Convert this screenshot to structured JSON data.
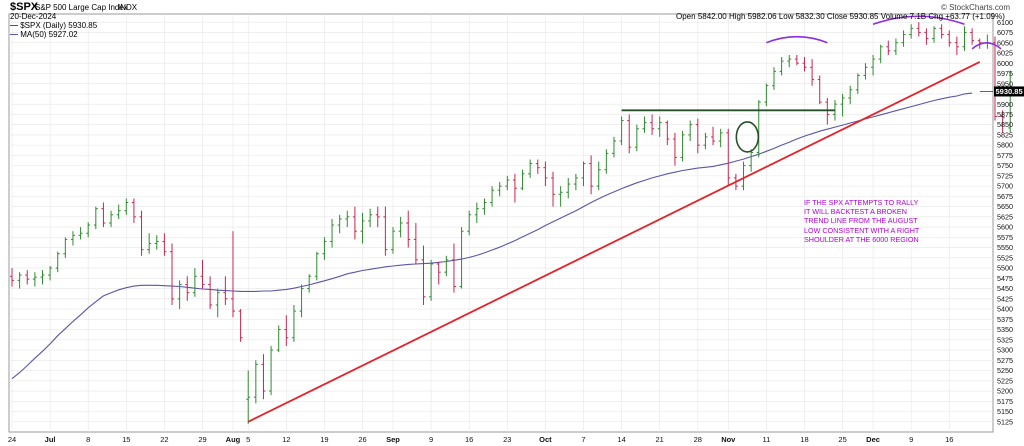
{
  "header": {
    "ticker": "$SPX",
    "name": "S&P 500 Large Cap Index",
    "exchange": "INDX",
    "date": "20-Dec-2024",
    "copyright": "© StockCharts.com",
    "legend_price": "$SPX (Daily) 5930.85",
    "legend_ma": "MA(50) 5927.02",
    "ohlc": {
      "open_label": "Open",
      "open": "5842.00",
      "high_label": "High",
      "high": "5982.06",
      "low_label": "Low",
      "low": "5832.30",
      "close_label": "Close",
      "close": "5930.85",
      "volume_label": "Volume",
      "volume": "7.1B",
      "chg_label": "Chg",
      "chg": "+63.77 (+1.09%)"
    }
  },
  "annotation_text": "IF THE SPX ATTEMPTS TO RALLY IT WILL BACKTEST A BROKEN TREND LINE FROM THE AUGUST LOW CONSISTENT WITH A RIGHT SHOULDER AT THE 6000 REGION",
  "last_price_label": "5930.85",
  "colors": {
    "up": "#2e8b2e",
    "down": "#c8264f",
    "ma": "#5a56a8",
    "trend": "#e3222a",
    "neckline": "#28502a",
    "arc": "#8a2be2",
    "note": "#b000d6",
    "grid": "#e6e6e6"
  },
  "chart_data": {
    "type": "ohlc",
    "ylim": [
      5100,
      6120
    ],
    "y_ticks": [
      5125,
      5150,
      5175,
      5200,
      5225,
      5250,
      5275,
      5300,
      5325,
      5350,
      5375,
      5400,
      5425,
      5450,
      5475,
      5500,
      5525,
      5550,
      5575,
      5600,
      5625,
      5650,
      5675,
      5700,
      5725,
      5750,
      5775,
      5800,
      5825,
      5850,
      5875,
      5900,
      5925,
      5950,
      5975,
      6000,
      6025,
      6050,
      6075,
      6100
    ],
    "x_labels": [
      {
        "label": "24",
        "i": 0,
        "bold": false
      },
      {
        "label": "Jul",
        "i": 5,
        "bold": true
      },
      {
        "label": "8",
        "i": 10,
        "bold": false
      },
      {
        "label": "15",
        "i": 15,
        "bold": false
      },
      {
        "label": "22",
        "i": 20,
        "bold": false
      },
      {
        "label": "29",
        "i": 25,
        "bold": false
      },
      {
        "label": "Aug",
        "i": 29,
        "bold": true
      },
      {
        "label": "5",
        "i": 31,
        "bold": false
      },
      {
        "label": "12",
        "i": 36,
        "bold": false
      },
      {
        "label": "19",
        "i": 41,
        "bold": false
      },
      {
        "label": "26",
        "i": 46,
        "bold": false
      },
      {
        "label": "Sep",
        "i": 50,
        "bold": true
      },
      {
        "label": "9",
        "i": 55,
        "bold": false
      },
      {
        "label": "16",
        "i": 60,
        "bold": false
      },
      {
        "label": "23",
        "i": 65,
        "bold": false
      },
      {
        "label": "Oct",
        "i": 70,
        "bold": true
      },
      {
        "label": "7",
        "i": 75,
        "bold": false
      },
      {
        "label": "14",
        "i": 80,
        "bold": false
      },
      {
        "label": "21",
        "i": 85,
        "bold": false
      },
      {
        "label": "28",
        "i": 90,
        "bold": false
      },
      {
        "label": "Nov",
        "i": 94,
        "bold": true
      },
      {
        "label": "11",
        "i": 99,
        "bold": false
      },
      {
        "label": "18",
        "i": 104,
        "bold": false
      },
      {
        "label": "25",
        "i": 109,
        "bold": false
      },
      {
        "label": "Dec",
        "i": 113,
        "bold": true
      },
      {
        "label": "9",
        "i": 118,
        "bold": false
      },
      {
        "label": "16",
        "i": 123,
        "bold": false
      }
    ],
    "bars": [
      [
        5480,
        5500,
        5455,
        5470
      ],
      [
        5470,
        5490,
        5450,
        5483
      ],
      [
        5483,
        5495,
        5460,
        5473
      ],
      [
        5473,
        5490,
        5455,
        5478
      ],
      [
        5478,
        5495,
        5460,
        5483
      ],
      [
        5483,
        5505,
        5470,
        5500
      ],
      [
        5500,
        5540,
        5490,
        5535
      ],
      [
        5535,
        5575,
        5525,
        5570
      ],
      [
        5570,
        5590,
        5555,
        5580
      ],
      [
        5580,
        5600,
        5570,
        5585
      ],
      [
        5585,
        5612,
        5575,
        5605
      ],
      [
        5605,
        5650,
        5595,
        5645
      ],
      [
        5645,
        5660,
        5600,
        5610
      ],
      [
        5610,
        5640,
        5600,
        5630
      ],
      [
        5630,
        5655,
        5620,
        5640
      ],
      [
        5640,
        5670,
        5630,
        5660
      ],
      [
        5660,
        5670,
        5610,
        5625
      ],
      [
        5625,
        5640,
        5530,
        5545
      ],
      [
        5545,
        5585,
        5535,
        5560
      ],
      [
        5560,
        5580,
        5545,
        5565
      ],
      [
        5565,
        5585,
        5530,
        5540
      ],
      [
        5540,
        5560,
        5410,
        5425
      ],
      [
        5425,
        5470,
        5400,
        5460
      ],
      [
        5460,
        5480,
        5420,
        5440
      ],
      [
        5440,
        5500,
        5430,
        5480
      ],
      [
        5480,
        5520,
        5450,
        5460
      ],
      [
        5460,
        5480,
        5400,
        5410
      ],
      [
        5410,
        5450,
        5380,
        5440
      ],
      [
        5440,
        5480,
        5410,
        5425
      ],
      [
        5425,
        5590,
        5380,
        5395
      ],
      [
        5395,
        5400,
        5320,
        5330
      ],
      [
        5180,
        5250,
        5120,
        5185
      ],
      [
        5185,
        5275,
        5170,
        5265
      ],
      [
        5265,
        5290,
        5180,
        5200
      ],
      [
        5200,
        5310,
        5190,
        5300
      ],
      [
        5300,
        5360,
        5295,
        5350
      ],
      [
        5350,
        5385,
        5310,
        5330
      ],
      [
        5330,
        5410,
        5320,
        5395
      ],
      [
        5395,
        5460,
        5380,
        5450
      ],
      [
        5450,
        5485,
        5440,
        5480
      ],
      [
        5480,
        5540,
        5470,
        5535
      ],
      [
        5535,
        5575,
        5520,
        5565
      ],
      [
        5565,
        5620,
        5550,
        5605
      ],
      [
        5605,
        5630,
        5585,
        5620
      ],
      [
        5620,
        5640,
        5600,
        5625
      ],
      [
        5625,
        5650,
        5570,
        5590
      ],
      [
        5590,
        5635,
        5560,
        5615
      ],
      [
        5615,
        5645,
        5600,
        5630
      ],
      [
        5630,
        5650,
        5600,
        5625
      ],
      [
        5625,
        5650,
        5530,
        5545
      ],
      [
        5545,
        5600,
        5535,
        5590
      ],
      [
        5590,
        5625,
        5575,
        5610
      ],
      [
        5610,
        5640,
        5550,
        5570
      ],
      [
        5570,
        5610,
        5510,
        5520
      ],
      [
        5520,
        5555,
        5410,
        5430
      ],
      [
        5430,
        5520,
        5420,
        5510
      ],
      [
        5510,
        5515,
        5460,
        5490
      ],
      [
        5490,
        5530,
        5480,
        5520
      ],
      [
        5520,
        5560,
        5440,
        5455
      ],
      [
        5455,
        5600,
        5450,
        5590
      ],
      [
        5590,
        5640,
        5580,
        5630
      ],
      [
        5630,
        5660,
        5610,
        5645
      ],
      [
        5645,
        5670,
        5630,
        5660
      ],
      [
        5660,
        5700,
        5650,
        5690
      ],
      [
        5690,
        5710,
        5675,
        5700
      ],
      [
        5700,
        5725,
        5690,
        5715
      ],
      [
        5715,
        5730,
        5660,
        5695
      ],
      [
        5695,
        5740,
        5690,
        5730
      ],
      [
        5730,
        5765,
        5720,
        5755
      ],
      [
        5755,
        5765,
        5730,
        5745
      ],
      [
        5745,
        5760,
        5700,
        5720
      ],
      [
        5720,
        5735,
        5650,
        5680
      ],
      [
        5680,
        5700,
        5650,
        5685
      ],
      [
        5685,
        5720,
        5670,
        5705
      ],
      [
        5705,
        5730,
        5690,
        5720
      ],
      [
        5720,
        5760,
        5700,
        5755
      ],
      [
        5755,
        5775,
        5680,
        5700
      ],
      [
        5700,
        5760,
        5690,
        5740
      ],
      [
        5740,
        5790,
        5730,
        5780
      ],
      [
        5780,
        5820,
        5770,
        5810
      ],
      [
        5810,
        5870,
        5800,
        5860
      ],
      [
        5860,
        5875,
        5780,
        5795
      ],
      [
        5795,
        5850,
        5785,
        5840
      ],
      [
        5840,
        5870,
        5830,
        5855
      ],
      [
        5855,
        5875,
        5825,
        5840
      ],
      [
        5840,
        5870,
        5820,
        5855
      ],
      [
        5855,
        5860,
        5800,
        5815
      ],
      [
        5815,
        5830,
        5750,
        5770
      ],
      [
        5770,
        5835,
        5760,
        5825
      ],
      [
        5825,
        5860,
        5810,
        5850
      ],
      [
        5850,
        5865,
        5780,
        5800
      ],
      [
        5800,
        5830,
        5790,
        5820
      ],
      [
        5820,
        5845,
        5800,
        5810
      ],
      [
        5810,
        5840,
        5795,
        5830
      ],
      [
        5830,
        5840,
        5700,
        5720
      ],
      [
        5720,
        5730,
        5690,
        5700
      ],
      [
        5700,
        5760,
        5690,
        5750
      ],
      [
        5750,
        5790,
        5735,
        5782
      ],
      [
        5782,
        5910,
        5770,
        5905
      ],
      [
        5905,
        5950,
        5895,
        5945
      ],
      [
        5945,
        5990,
        5935,
        5980
      ],
      [
        5980,
        6015,
        5970,
        6005
      ],
      [
        6005,
        6020,
        5990,
        6010
      ],
      [
        6010,
        6020,
        5995,
        6000
      ],
      [
        6000,
        6015,
        5980,
        5990
      ],
      [
        5990,
        6010,
        5945,
        5960
      ],
      [
        5960,
        5970,
        5900,
        5905
      ],
      [
        5905,
        5915,
        5850,
        5875
      ],
      [
        5875,
        5910,
        5860,
        5900
      ],
      [
        5900,
        5925,
        5870,
        5915
      ],
      [
        5915,
        5945,
        5900,
        5935
      ],
      [
        5935,
        5975,
        5925,
        5970
      ],
      [
        5970,
        6000,
        5960,
        5990
      ],
      [
        5990,
        6020,
        5970,
        6010
      ],
      [
        6010,
        6045,
        6000,
        6040
      ],
      [
        6040,
        6055,
        6020,
        6030
      ],
      [
        6030,
        6060,
        6020,
        6050
      ],
      [
        6050,
        6080,
        6040,
        6070
      ],
      [
        6070,
        6095,
        6060,
        6085
      ],
      [
        6085,
        6100,
        6065,
        6075
      ],
      [
        6075,
        6085,
        6045,
        6060
      ],
      [
        6060,
        6090,
        6050,
        6085
      ],
      [
        6085,
        6095,
        6060,
        6070
      ],
      [
        6070,
        6080,
        6040,
        6050
      ],
      [
        6050,
        6065,
        6020,
        6040
      ],
      [
        6040,
        6090,
        6030,
        6075
      ],
      [
        6075,
        6085,
        6045,
        6055
      ],
      [
        6055,
        6060,
        6035,
        6050
      ],
      [
        6050,
        6070,
        6035,
        6050
      ],
      [
        6050,
        6065,
        5860,
        5870
      ],
      [
        5870,
        5885,
        5830,
        5867
      ],
      [
        5842,
        5982,
        5832,
        5931
      ]
    ],
    "ma50": [
      5230,
      5245,
      5262,
      5280,
      5297,
      5315,
      5335,
      5352,
      5370,
      5386,
      5403,
      5418,
      5432,
      5440,
      5447,
      5452,
      5456,
      5458,
      5458,
      5458,
      5457,
      5456,
      5455,
      5453,
      5451,
      5449,
      5448,
      5446,
      5445,
      5444,
      5443,
      5443,
      5443,
      5444,
      5444,
      5446,
      5448,
      5451,
      5455,
      5459,
      5464,
      5469,
      5474,
      5480,
      5486,
      5490,
      5494,
      5497,
      5500,
      5503,
      5505,
      5507,
      5509,
      5510,
      5511,
      5512,
      5514,
      5516,
      5519,
      5522,
      5526,
      5531,
      5537,
      5544,
      5551,
      5559,
      5567,
      5576,
      5585,
      5594,
      5604,
      5613,
      5622,
      5631,
      5640,
      5650,
      5660,
      5669,
      5678,
      5686,
      5694,
      5701,
      5708,
      5714,
      5720,
      5725,
      5730,
      5734,
      5738,
      5741,
      5744,
      5746,
      5748,
      5752,
      5756,
      5761,
      5766,
      5772,
      5778,
      5785,
      5792,
      5800,
      5807,
      5815,
      5822,
      5828,
      5834,
      5839,
      5844,
      5849,
      5854,
      5859,
      5864,
      5869,
      5874,
      5879,
      5884,
      5889,
      5894,
      5899,
      5904,
      5909,
      5913,
      5917,
      5920,
      5925,
      5927
    ],
    "trendline": {
      "from": {
        "i": 31,
        "y": 5125
      },
      "to": {
        "i": 127,
        "y": 6003
      }
    },
    "neckline": {
      "from_i": 80,
      "to_i": 108,
      "y": 5885
    }
  }
}
